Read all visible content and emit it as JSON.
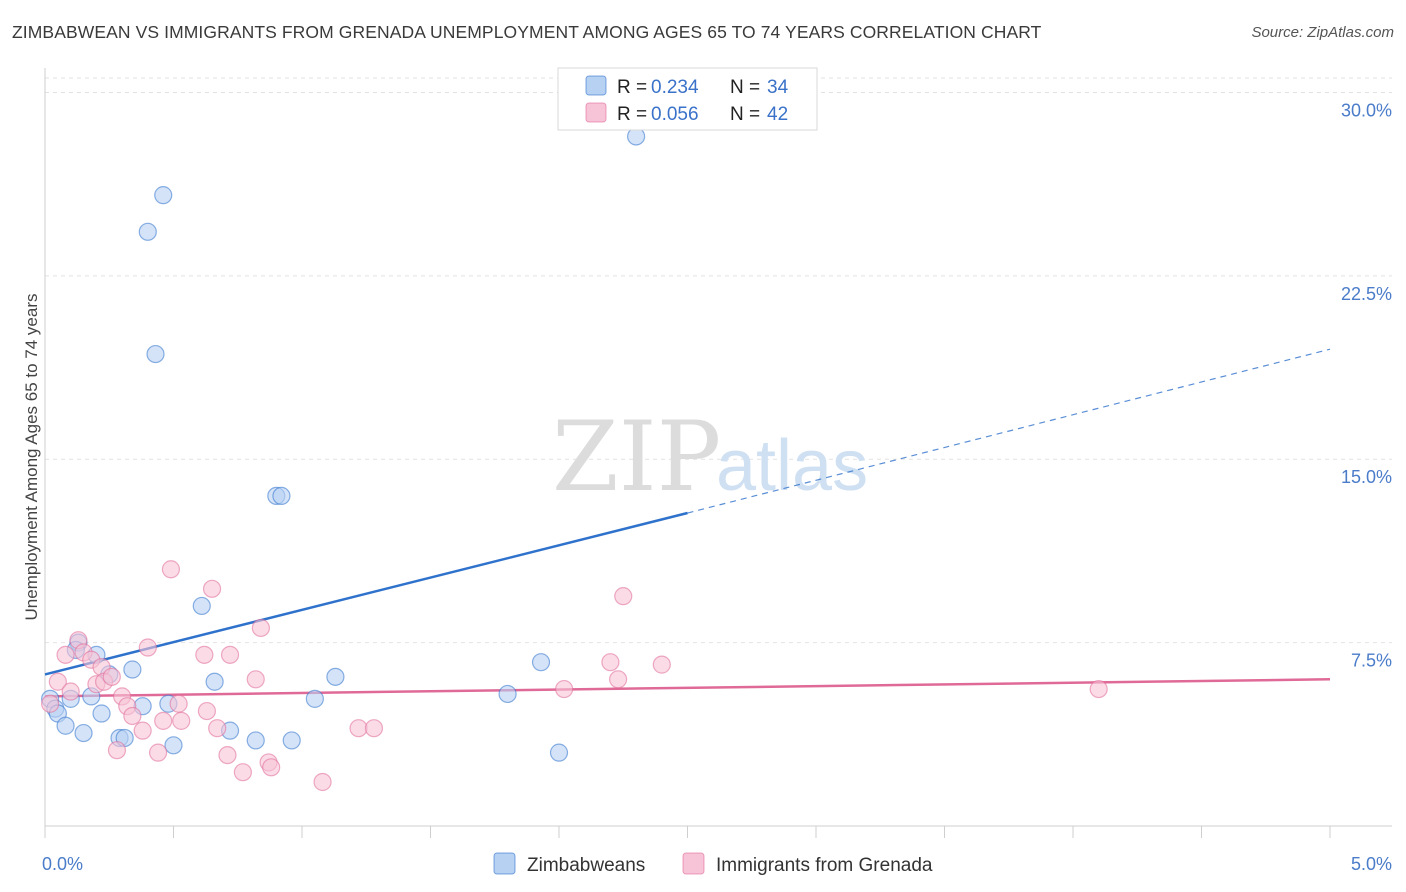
{
  "header": {
    "title": "ZIMBABWEAN VS IMMIGRANTS FROM GRENADA UNEMPLOYMENT AMONG AGES 65 TO 74 YEARS CORRELATION CHART",
    "source": "Source: ZipAtlas.com"
  },
  "watermark": {
    "zip": "ZIP",
    "atlas": "atlas"
  },
  "colors": {
    "blue": "#2f72cc",
    "blue_fill": "#b7d1f3",
    "pink": "#e06a97",
    "pink_fill": "#f7c3d6",
    "grid": "#e2e2e2",
    "tick_text": "#4a7cc9"
  },
  "legend": {
    "r_label": "R =",
    "n_label": "N =",
    "rows": [
      {
        "r": "0.234",
        "n": "34"
      },
      {
        "r": "0.056",
        "n": "42"
      }
    ]
  },
  "chart_data": {
    "type": "scatter",
    "title": "ZIMBABWEAN VS IMMIGRANTS FROM GRENADA UNEMPLOYMENT AMONG AGES 65 TO 74 YEARS CORRELATION CHART",
    "xlabel": "",
    "ylabel": "Unemployment Among Ages 65 to 74 years",
    "xlim": [
      0,
      5.0
    ],
    "ylim": [
      0,
      31.0
    ],
    "x_tick_labels": [
      "0.0%",
      "5.0%"
    ],
    "y_ticks": [
      7.5,
      15.0,
      22.5,
      30.0
    ],
    "y_tick_labels": [
      "7.5%",
      "15.0%",
      "22.5%",
      "30.0%"
    ],
    "grid": true,
    "legend_position": "top-center",
    "series": [
      {
        "name": "Zimbabweans",
        "color": "blue",
        "r": 0.234,
        "n": 34,
        "trend": {
          "x0": 0.0,
          "y0": 6.2,
          "x1": 2.5,
          "y1": 12.8,
          "dash_to_x": 5.0,
          "dash_to_y": 19.5
        },
        "points": [
          [
            0.02,
            5.2
          ],
          [
            0.04,
            4.8
          ],
          [
            0.05,
            4.6
          ],
          [
            0.08,
            4.1
          ],
          [
            0.1,
            5.2
          ],
          [
            0.13,
            7.5
          ],
          [
            0.15,
            3.8
          ],
          [
            0.18,
            5.3
          ],
          [
            0.2,
            7.0
          ],
          [
            0.22,
            4.6
          ],
          [
            0.25,
            6.2
          ],
          [
            0.29,
            3.6
          ],
          [
            0.31,
            3.6
          ],
          [
            0.34,
            6.4
          ],
          [
            0.38,
            4.9
          ],
          [
            0.4,
            24.3
          ],
          [
            0.43,
            19.3
          ],
          [
            0.46,
            25.8
          ],
          [
            0.48,
            5.0
          ],
          [
            0.5,
            3.3
          ],
          [
            0.61,
            9.0
          ],
          [
            0.66,
            5.9
          ],
          [
            0.72,
            3.9
          ],
          [
            0.82,
            3.5
          ],
          [
            0.9,
            13.5
          ],
          [
            0.92,
            13.5
          ],
          [
            0.96,
            3.5
          ],
          [
            1.05,
            5.2
          ],
          [
            1.13,
            6.1
          ],
          [
            1.8,
            5.4
          ],
          [
            1.93,
            6.7
          ],
          [
            2.0,
            3.0
          ],
          [
            2.3,
            28.2
          ],
          [
            0.12,
            7.2
          ]
        ]
      },
      {
        "name": "Immigrants from Grenada",
        "color": "pink",
        "r": 0.056,
        "n": 42,
        "trend": {
          "x0": 0.0,
          "y0": 5.3,
          "x1": 5.0,
          "y1": 6.0
        },
        "points": [
          [
            0.02,
            5.0
          ],
          [
            0.05,
            5.9
          ],
          [
            0.08,
            7.0
          ],
          [
            0.1,
            5.5
          ],
          [
            0.13,
            7.6
          ],
          [
            0.15,
            7.1
          ],
          [
            0.18,
            6.8
          ],
          [
            0.2,
            5.8
          ],
          [
            0.22,
            6.5
          ],
          [
            0.23,
            5.9
          ],
          [
            0.26,
            6.1
          ],
          [
            0.28,
            3.1
          ],
          [
            0.3,
            5.3
          ],
          [
            0.32,
            4.9
          ],
          [
            0.34,
            4.5
          ],
          [
            0.38,
            3.9
          ],
          [
            0.4,
            7.3
          ],
          [
            0.44,
            3.0
          ],
          [
            0.46,
            4.3
          ],
          [
            0.49,
            10.5
          ],
          [
            0.52,
            5.0
          ],
          [
            0.53,
            4.3
          ],
          [
            0.62,
            7.0
          ],
          [
            0.63,
            4.7
          ],
          [
            0.65,
            9.7
          ],
          [
            0.67,
            4.0
          ],
          [
            0.71,
            2.9
          ],
          [
            0.72,
            7.0
          ],
          [
            0.77,
            2.2
          ],
          [
            0.82,
            6.0
          ],
          [
            0.84,
            8.1
          ],
          [
            0.87,
            2.6
          ],
          [
            0.88,
            2.4
          ],
          [
            1.08,
            1.8
          ],
          [
            1.22,
            4.0
          ],
          [
            1.28,
            4.0
          ],
          [
            2.02,
            5.6
          ],
          [
            2.2,
            6.7
          ],
          [
            2.23,
            6.0
          ],
          [
            2.25,
            9.4
          ],
          [
            2.4,
            6.6
          ],
          [
            4.1,
            5.6
          ]
        ]
      }
    ]
  }
}
